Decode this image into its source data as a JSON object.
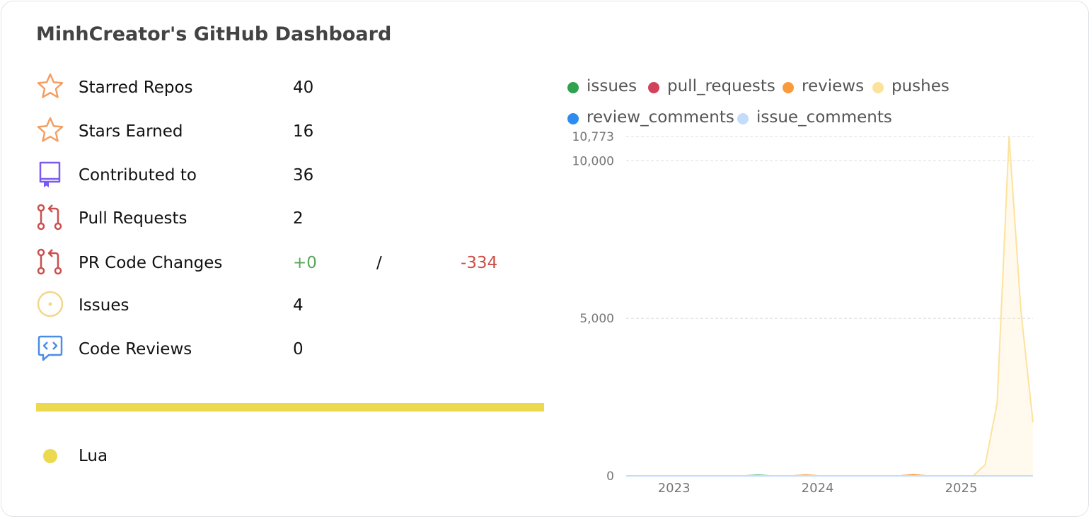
{
  "title": "MinhCreator's GitHub Dashboard",
  "stats": [
    {
      "label": "Starred Repos",
      "value": "40",
      "icon": "star-icon",
      "color": "#f59e62"
    },
    {
      "label": "Stars Earned",
      "value": "16",
      "icon": "star-icon",
      "color": "#f59e62"
    },
    {
      "label": "Contributed to",
      "value": "36",
      "icon": "repo-icon",
      "color": "#7a5af0"
    },
    {
      "label": "Pull Requests",
      "value": "2",
      "icon": "pull-request-icon",
      "color": "#c9514d"
    },
    {
      "label": "PR Code Changes",
      "plus": "+0",
      "sep": "/",
      "minus": "-334",
      "icon": "pull-request-icon",
      "color": "#c9514d"
    },
    {
      "label": "Issues",
      "value": "4",
      "icon": "issue-icon",
      "color": "#f4d58d"
    },
    {
      "label": "Code Reviews",
      "value": "0",
      "icon": "code-review-icon",
      "color": "#4a8de6"
    }
  ],
  "languages": [
    {
      "name": "Lua",
      "color": "#ecd94f",
      "share": 1.0
    }
  ],
  "chart_data": {
    "type": "area",
    "series": [
      {
        "name": "issues",
        "color": "#2fa14f"
      },
      {
        "name": "pull_requests",
        "color": "#d1435b"
      },
      {
        "name": "reviews",
        "color": "#f99b3c"
      },
      {
        "name": "pushes",
        "color": "#fde29c"
      },
      {
        "name": "review_comments",
        "color": "#2d8cf0"
      },
      {
        "name": "issue_comments",
        "color": "#c4dcfb"
      }
    ],
    "x": [
      "2022-09",
      "2022-10",
      "2022-11",
      "2022-12",
      "2023-01",
      "2023-02",
      "2023-03",
      "2023-04",
      "2023-05",
      "2023-06",
      "2023-07",
      "2023-08",
      "2023-09",
      "2023-10",
      "2023-11",
      "2023-12",
      "2024-01",
      "2024-02",
      "2024-03",
      "2024-04",
      "2024-05",
      "2024-06",
      "2024-07",
      "2024-08",
      "2024-09",
      "2024-10",
      "2024-11",
      "2024-12",
      "2025-01",
      "2025-02",
      "2025-03",
      "2025-04",
      "2025-05",
      "2025-06",
      "2025-07"
    ],
    "values": {
      "issues": [
        0,
        0,
        0,
        0,
        0,
        0,
        0,
        0,
        0,
        0,
        0,
        20,
        0,
        0,
        0,
        0,
        0,
        0,
        0,
        0,
        0,
        0,
        0,
        0,
        30,
        0,
        0,
        0,
        0,
        0,
        0,
        0,
        0,
        0,
        0
      ],
      "pull_requests": [
        0,
        0,
        0,
        0,
        0,
        0,
        0,
        0,
        0,
        0,
        0,
        0,
        0,
        0,
        0,
        20,
        0,
        0,
        0,
        0,
        0,
        0,
        0,
        0,
        30,
        0,
        0,
        0,
        0,
        0,
        0,
        0,
        0,
        0,
        0
      ],
      "reviews": [
        0,
        0,
        0,
        0,
        0,
        0,
        0,
        0,
        0,
        0,
        0,
        0,
        0,
        0,
        0,
        30,
        0,
        0,
        0,
        0,
        0,
        0,
        0,
        0,
        40,
        0,
        0,
        0,
        0,
        0,
        0,
        0,
        0,
        0,
        0
      ],
      "pushes": [
        0,
        0,
        0,
        0,
        0,
        0,
        0,
        0,
        0,
        0,
        0,
        0,
        0,
        0,
        0,
        0,
        0,
        0,
        0,
        0,
        0,
        0,
        0,
        0,
        0,
        0,
        0,
        0,
        0,
        0,
        350,
        2300,
        10773,
        5200,
        1700
      ],
      "review_comments": [
        0,
        0,
        0,
        0,
        0,
        0,
        0,
        0,
        0,
        0,
        0,
        0,
        0,
        0,
        0,
        0,
        0,
        0,
        0,
        0,
        0,
        0,
        0,
        0,
        0,
        0,
        0,
        0,
        0,
        0,
        0,
        0,
        0,
        0,
        0
      ],
      "issue_comments": [
        0,
        0,
        0,
        0,
        0,
        0,
        0,
        0,
        0,
        0,
        0,
        0,
        0,
        0,
        0,
        0,
        0,
        0,
        0,
        0,
        0,
        0,
        0,
        0,
        0,
        0,
        0,
        0,
        0,
        0,
        0,
        0,
        0,
        0,
        0
      ]
    },
    "y_ticks": [
      "0",
      "5,000",
      "10,000",
      "10,773"
    ],
    "y_tick_values": [
      0,
      5000,
      10000,
      10773
    ],
    "x_ticks": [
      "2023",
      "2024",
      "2025"
    ],
    "x_tick_values": [
      "2023-01",
      "2024-01",
      "2025-01"
    ],
    "ylim": [
      0,
      10773
    ],
    "grid": true,
    "legend": "top"
  }
}
